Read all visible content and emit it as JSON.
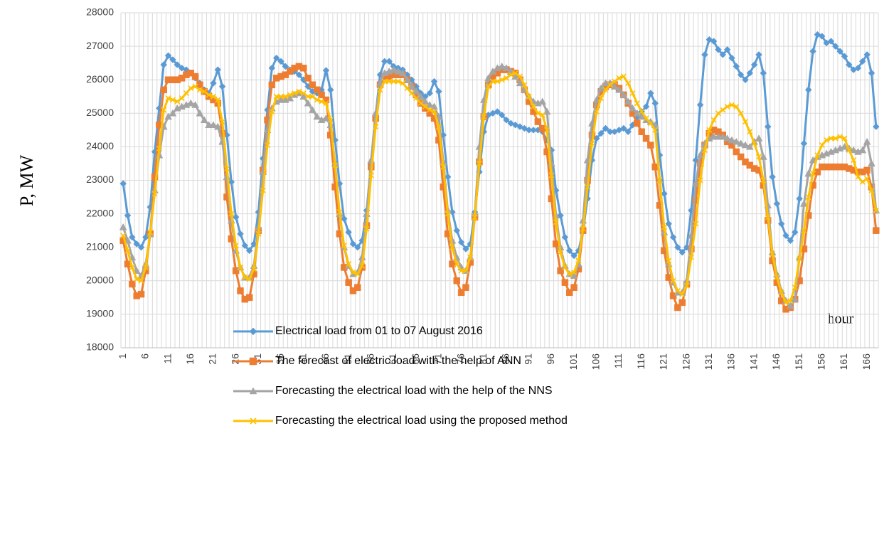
{
  "chart_data": {
    "type": "line",
    "y_label": "P, MW",
    "x_label": "hour",
    "legend": "bottom",
    "grid": true,
    "ylim": [
      18000,
      28000
    ],
    "yticks": [
      18000,
      19000,
      20000,
      21000,
      22000,
      23000,
      24000,
      25000,
      26000,
      27000,
      28000
    ],
    "categories": [
      1,
      null,
      null,
      null,
      null,
      6,
      null,
      null,
      null,
      null,
      11,
      null,
      null,
      null,
      null,
      16,
      null,
      null,
      null,
      null,
      21,
      null,
      null,
      null,
      null,
      26,
      null,
      null,
      null,
      null,
      31,
      null,
      null,
      null,
      null,
      36,
      null,
      null,
      null,
      null,
      41,
      null,
      null,
      null,
      null,
      46,
      null,
      null,
      null,
      null,
      51,
      null,
      null,
      null,
      null,
      56,
      null,
      null,
      null,
      null,
      61,
      null,
      null,
      null,
      null,
      66,
      null,
      null,
      null,
      null,
      71,
      null,
      null,
      null,
      null,
      76,
      null,
      null,
      null,
      null,
      81,
      null,
      null,
      null,
      null,
      86,
      null,
      null,
      null,
      null,
      91,
      null,
      null,
      null,
      null,
      96,
      null,
      null,
      null,
      null,
      101,
      null,
      null,
      null,
      null,
      106,
      null,
      null,
      null,
      null,
      111,
      null,
      null,
      null,
      null,
      116,
      null,
      null,
      null,
      null,
      121,
      null,
      null,
      null,
      null,
      126,
      null,
      null,
      null,
      null,
      131,
      null,
      null,
      null,
      null,
      136,
      null,
      null,
      null,
      null,
      141,
      null,
      null,
      null,
      null,
      146,
      null,
      null,
      null,
      null,
      151,
      null,
      null,
      null,
      null,
      156,
      null,
      null,
      null,
      null,
      161,
      null,
      null,
      null,
      null,
      166,
      null,
      null
    ],
    "series": [
      {
        "name": "Electrical load from 01 to 07 August 2016",
        "color": "#5b9bd5",
        "marker": "diamond",
        "values": [
          22900,
          21950,
          21300,
          21100,
          21000,
          21300,
          22200,
          23850,
          25150,
          26450,
          26720,
          26600,
          26450,
          26350,
          26300,
          26200,
          26050,
          25900,
          25700,
          25600,
          25900,
          26300,
          25800,
          24350,
          22950,
          21900,
          21400,
          21050,
          20900,
          21100,
          22050,
          23650,
          25100,
          26350,
          26650,
          26550,
          26400,
          26300,
          26250,
          26150,
          26000,
          25800,
          25650,
          25600,
          25700,
          26280,
          25700,
          24200,
          22900,
          21850,
          21450,
          21100,
          21000,
          21200,
          22100,
          23500,
          24950,
          26150,
          26550,
          26550,
          26400,
          26350,
          26300,
          26150,
          26000,
          25800,
          25600,
          25500,
          25600,
          25950,
          25650,
          24350,
          23100,
          22050,
          21500,
          21150,
          20950,
          21100,
          22050,
          23250,
          24450,
          24950,
          25000,
          25050,
          24950,
          24800,
          24700,
          24650,
          24600,
          24550,
          24500,
          24500,
          24500,
          24450,
          24200,
          23900,
          22700,
          21950,
          21300,
          20900,
          20750,
          20900,
          21500,
          22450,
          23600,
          24250,
          24400,
          24550,
          24450,
          24450,
          24500,
          24550,
          24450,
          24650,
          24850,
          25050,
          25200,
          25600,
          25300,
          23750,
          22600,
          21700,
          21300,
          21000,
          20850,
          21000,
          22100,
          23600,
          25250,
          26750,
          27200,
          27150,
          26900,
          26750,
          26900,
          26650,
          26400,
          26150,
          26000,
          26200,
          26450,
          26750,
          26200,
          24600,
          23100,
          22300,
          21700,
          21350,
          21200,
          21450,
          22450,
          24100,
          25700,
          26850,
          27350,
          27300,
          27100,
          27150,
          27000,
          26850,
          26700,
          26450,
          26300,
          26350,
          26550,
          26750,
          26200,
          24600
        ]
      },
      {
        "name": "The forecast of electric load with the help of ANN",
        "color": "#ed7d31",
        "marker": "square",
        "values": [
          21200,
          20500,
          19900,
          19550,
          19600,
          20300,
          21400,
          23100,
          24650,
          25700,
          26000,
          26000,
          26000,
          26050,
          26150,
          26200,
          26100,
          25850,
          25650,
          25500,
          25400,
          25300,
          24400,
          22500,
          21250,
          20300,
          19700,
          19450,
          19500,
          20200,
          21500,
          23300,
          24800,
          25850,
          26050,
          26100,
          26150,
          26250,
          26350,
          26400,
          26350,
          26050,
          25850,
          25700,
          25550,
          25400,
          24350,
          22800,
          21400,
          20400,
          19950,
          19700,
          19800,
          20400,
          21650,
          23400,
          24850,
          25850,
          26100,
          26100,
          26150,
          26150,
          26150,
          26000,
          25800,
          25550,
          25300,
          25150,
          25000,
          24850,
          24200,
          22800,
          21400,
          20500,
          20000,
          19650,
          19800,
          20550,
          21900,
          23550,
          24900,
          25850,
          26100,
          26200,
          26300,
          26300,
          26250,
          26200,
          26000,
          25700,
          25350,
          25050,
          24750,
          24550,
          23850,
          22450,
          21100,
          20300,
          19950,
          19650,
          19800,
          20350,
          21500,
          23000,
          24350,
          25250,
          25650,
          25800,
          25850,
          25850,
          25750,
          25550,
          25300,
          25000,
          24700,
          24450,
          24250,
          24050,
          23400,
          22250,
          20900,
          20100,
          19550,
          19200,
          19350,
          19900,
          20950,
          22400,
          23500,
          24050,
          24400,
          24500,
          24450,
          24350,
          24150,
          24050,
          23850,
          23700,
          23550,
          23450,
          23350,
          23300,
          22850,
          21800,
          20600,
          19950,
          19400,
          19150,
          19200,
          19450,
          20000,
          20950,
          21950,
          22850,
          23250,
          23400,
          23400,
          23400,
          23400,
          23400,
          23400,
          23350,
          23300,
          23250,
          23250,
          23300,
          22800,
          21500
        ]
      },
      {
        "name": "Forecasting the electrical load with the help of the NNS",
        "color": "#a5a5a5",
        "marker": "triangle",
        "values": [
          21600,
          21200,
          20700,
          20300,
          20150,
          20500,
          21400,
          22700,
          23750,
          24600,
          24900,
          25000,
          25150,
          25200,
          25250,
          25300,
          25250,
          25000,
          24800,
          24650,
          24650,
          24600,
          24150,
          23100,
          21800,
          20900,
          20400,
          20100,
          20100,
          20450,
          21600,
          23250,
          24500,
          25150,
          25350,
          25400,
          25400,
          25450,
          25550,
          25600,
          25500,
          25300,
          25100,
          24900,
          24800,
          24850,
          24650,
          23500,
          22000,
          21000,
          20450,
          20200,
          20250,
          20700,
          22000,
          23600,
          25000,
          25900,
          26200,
          26250,
          26300,
          26250,
          26200,
          26000,
          25800,
          25650,
          25500,
          25350,
          25250,
          25200,
          24900,
          23550,
          22100,
          21200,
          20700,
          20400,
          20300,
          20700,
          22000,
          24000,
          25400,
          26050,
          26250,
          26350,
          26400,
          26350,
          26250,
          26100,
          25900,
          25700,
          25500,
          25350,
          25300,
          25350,
          25050,
          23500,
          21950,
          21000,
          20450,
          20200,
          20150,
          20500,
          21800,
          23600,
          24700,
          25400,
          25750,
          25900,
          25900,
          25800,
          25700,
          25550,
          25350,
          25150,
          25000,
          24900,
          24800,
          24750,
          24650,
          23000,
          21450,
          20500,
          19950,
          19650,
          19650,
          20000,
          21350,
          22900,
          23750,
          24100,
          24250,
          24300,
          24300,
          24300,
          24250,
          24200,
          24150,
          24100,
          24050,
          24000,
          24150,
          24250,
          23700,
          22250,
          20850,
          20200,
          19700,
          19400,
          19250,
          19450,
          20700,
          22300,
          23200,
          23600,
          23700,
          23750,
          23800,
          23850,
          23900,
          23950,
          24000,
          23950,
          23900,
          23850,
          23900,
          24150,
          23500,
          22100
        ]
      },
      {
        "name": "Forecasting the electrical load using the proposed method",
        "color": "#ffc000",
        "marker": "x",
        "values": [
          21350,
          20900,
          20400,
          20050,
          20000,
          20400,
          21450,
          22600,
          23950,
          25100,
          25450,
          25400,
          25350,
          25450,
          25600,
          25750,
          25800,
          25700,
          25650,
          25550,
          25500,
          25400,
          24750,
          23350,
          22000,
          21050,
          20400,
          20100,
          20050,
          20350,
          21400,
          22700,
          24050,
          25050,
          25500,
          25500,
          25500,
          25550,
          25600,
          25650,
          25600,
          25500,
          25500,
          25400,
          25350,
          25300,
          24800,
          23450,
          22050,
          21050,
          20500,
          20250,
          20200,
          20450,
          21550,
          23150,
          24600,
          25700,
          25950,
          25950,
          25950,
          25950,
          25900,
          25750,
          25600,
          25450,
          25300,
          25200,
          25100,
          25050,
          24600,
          23400,
          22000,
          21000,
          20500,
          20300,
          20300,
          20700,
          21900,
          23500,
          24900,
          25800,
          25950,
          25950,
          26000,
          26050,
          26150,
          26200,
          26100,
          25850,
          25500,
          25200,
          25000,
          24950,
          24500,
          23150,
          21750,
          20850,
          20400,
          20200,
          20250,
          20600,
          21550,
          22800,
          24100,
          25050,
          25450,
          25700,
          25850,
          25950,
          26050,
          26100,
          25900,
          25600,
          25300,
          25050,
          24850,
          24700,
          24500,
          23000,
          21600,
          20600,
          20000,
          19700,
          19600,
          19850,
          20700,
          21700,
          23000,
          23900,
          24500,
          24800,
          25000,
          25100,
          25200,
          25250,
          25200,
          25000,
          24750,
          24450,
          24100,
          23700,
          23000,
          21900,
          20800,
          20100,
          19650,
          19350,
          19400,
          19800,
          20650,
          21500,
          22500,
          23200,
          23750,
          24050,
          24200,
          24250,
          24250,
          24300,
          24250,
          23900,
          23600,
          23100,
          22950,
          23050,
          22700,
          22100
        ]
      }
    ]
  }
}
